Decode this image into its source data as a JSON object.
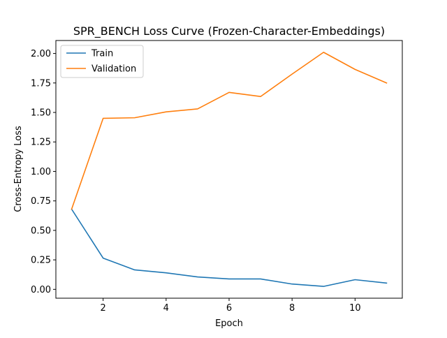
{
  "chart_data": {
    "type": "line",
    "title": "SPR_BENCH Loss Curve (Frozen-Character-Embeddings)",
    "xlabel": "Epoch",
    "ylabel": "Cross-Entropy Loss",
    "x": [
      1,
      2,
      3,
      4,
      5,
      6,
      7,
      8,
      9,
      10,
      11
    ],
    "xlim": [
      0.5,
      11.5
    ],
    "ylim": [
      -0.075,
      2.11
    ],
    "x_ticks": [
      2,
      4,
      6,
      8,
      10
    ],
    "x_tick_labels": [
      "2",
      "4",
      "6",
      "8",
      "10"
    ],
    "y_ticks": [
      0,
      0.25,
      0.5,
      0.75,
      1.0,
      1.25,
      1.5,
      1.75,
      2.0
    ],
    "y_tick_labels": [
      "0.00",
      "0.25",
      "0.50",
      "0.75",
      "1.00",
      "1.25",
      "1.50",
      "1.75",
      "2.00"
    ],
    "grid": false,
    "legend_position": "top-left",
    "series": [
      {
        "name": "Train",
        "color": "#1f77b4",
        "values": [
          0.68,
          0.265,
          0.165,
          0.14,
          0.105,
          0.088,
          0.088,
          0.045,
          0.025,
          0.082,
          0.053
        ]
      },
      {
        "name": "Validation",
        "color": "#ff7f0e",
        "values": [
          0.68,
          1.45,
          1.455,
          1.505,
          1.53,
          1.67,
          1.635,
          1.825,
          2.01,
          1.865,
          1.75
        ]
      }
    ]
  }
}
